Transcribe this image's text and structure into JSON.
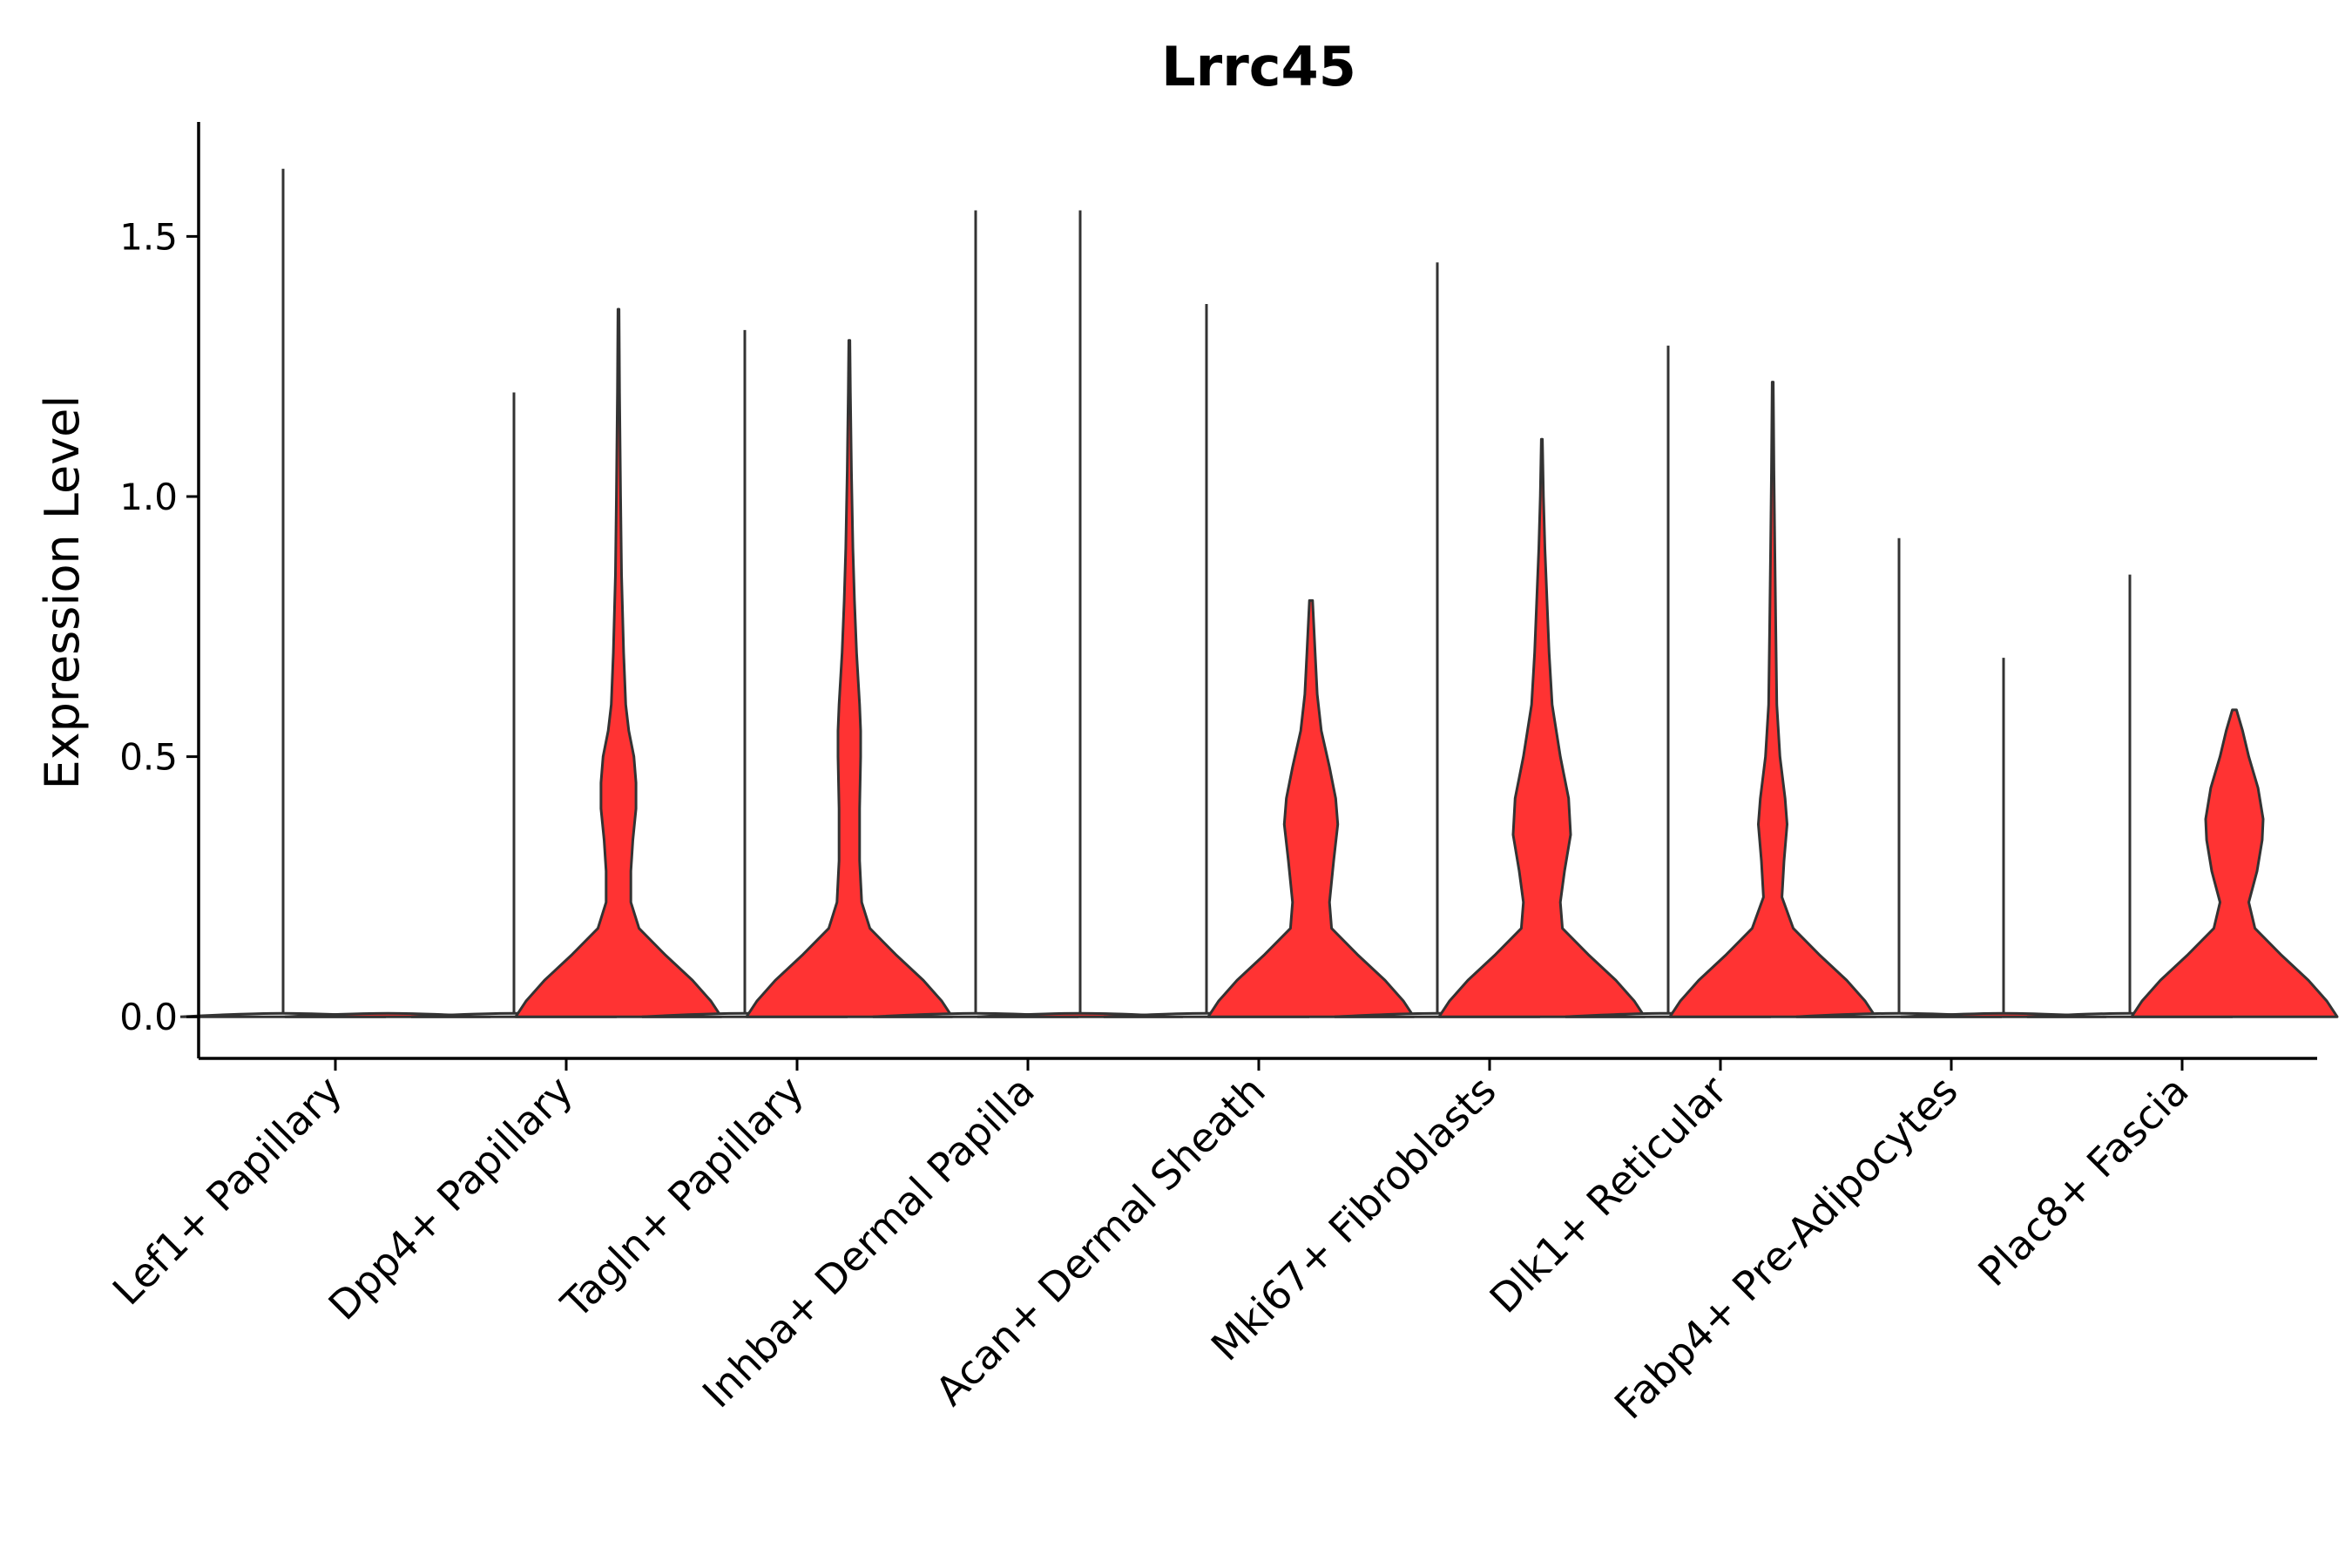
{
  "chart_data": {
    "type": "violin",
    "title": "Lrrc45",
    "xlabel": "",
    "ylabel": "Expression Level",
    "ylim": [
      -0.08,
      1.72
    ],
    "yticks": [
      "0.0",
      "0.5",
      "1.0",
      "1.5"
    ],
    "ytick_values": [
      0.0,
      0.5,
      1.0,
      1.5
    ],
    "categories": [
      "Lef1+ Papillary",
      "Dpp4+ Papillary",
      "Tagln+ Papillary",
      "Inhba+ Dermal Papilla",
      "Acan+ Dermal Sheath",
      "Mki67+ Fibroblasts",
      "Dlk1+ Reticular",
      "Fabp4+ Pre-Adipocytes",
      "Plac8+ Fascia"
    ],
    "series": [
      {
        "name": "",
        "color": "#ffffff",
        "max": [
          1.63,
          1.2,
          1.32,
          1.55,
          1.37,
          1.45,
          1.29,
          0.92,
          0.85
        ],
        "min": [
          0,
          0,
          0,
          0,
          0,
          0,
          0,
          0,
          0
        ],
        "density": [
          [],
          [],
          [],
          [],
          [],
          [],
          [],
          [],
          []
        ]
      },
      {
        "name": "",
        "color": "#ff3333",
        "max": [
          0,
          1.36,
          1.3,
          1.55,
          0.8,
          1.11,
          1.22,
          0.69,
          0.59
        ],
        "min": [
          0,
          0,
          0,
          0,
          0,
          0,
          0,
          0,
          0
        ],
        "density": [
          [],
          [
            [
              0,
              1.0
            ],
            [
              0.03,
              0.9
            ],
            [
              0.07,
              0.72
            ],
            [
              0.12,
              0.45
            ],
            [
              0.17,
              0.2
            ],
            [
              0.22,
              0.12
            ],
            [
              0.28,
              0.12
            ],
            [
              0.34,
              0.14
            ],
            [
              0.4,
              0.17
            ],
            [
              0.45,
              0.17
            ],
            [
              0.5,
              0.15
            ],
            [
              0.55,
              0.1
            ],
            [
              0.6,
              0.07
            ],
            [
              0.7,
              0.05
            ],
            [
              0.85,
              0.03
            ],
            [
              1.0,
              0.02
            ],
            [
              1.2,
              0.01
            ],
            [
              1.36,
              0.005
            ]
          ],
          [
            [
              0,
              1.0
            ],
            [
              0.03,
              0.9
            ],
            [
              0.07,
              0.72
            ],
            [
              0.12,
              0.45
            ],
            [
              0.17,
              0.2
            ],
            [
              0.22,
              0.12
            ],
            [
              0.3,
              0.1
            ],
            [
              0.4,
              0.1
            ],
            [
              0.5,
              0.11
            ],
            [
              0.55,
              0.11
            ],
            [
              0.6,
              0.1
            ],
            [
              0.7,
              0.07
            ],
            [
              0.8,
              0.05
            ],
            [
              0.9,
              0.035
            ],
            [
              1.05,
              0.02
            ],
            [
              1.2,
              0.01
            ],
            [
              1.3,
              0.005
            ]
          ],
          [],
          [
            [
              0,
              1.0
            ],
            [
              0.03,
              0.9
            ],
            [
              0.07,
              0.72
            ],
            [
              0.12,
              0.45
            ],
            [
              0.17,
              0.2
            ],
            [
              0.22,
              0.18
            ],
            [
              0.3,
              0.22
            ],
            [
              0.37,
              0.26
            ],
            [
              0.42,
              0.24
            ],
            [
              0.48,
              0.18
            ],
            [
              0.55,
              0.1
            ],
            [
              0.62,
              0.06
            ],
            [
              0.7,
              0.04
            ],
            [
              0.8,
              0.015
            ]
          ],
          [
            [
              0,
              1.0
            ],
            [
              0.03,
              0.9
            ],
            [
              0.07,
              0.72
            ],
            [
              0.12,
              0.45
            ],
            [
              0.17,
              0.2
            ],
            [
              0.22,
              0.18
            ],
            [
              0.28,
              0.22
            ],
            [
              0.35,
              0.28
            ],
            [
              0.42,
              0.26
            ],
            [
              0.5,
              0.18
            ],
            [
              0.6,
              0.1
            ],
            [
              0.7,
              0.07
            ],
            [
              0.8,
              0.05
            ],
            [
              0.9,
              0.03
            ],
            [
              1.0,
              0.015
            ],
            [
              1.11,
              0.005
            ]
          ],
          [
            [
              0,
              1.0
            ],
            [
              0.03,
              0.9
            ],
            [
              0.07,
              0.72
            ],
            [
              0.12,
              0.45
            ],
            [
              0.17,
              0.2
            ],
            [
              0.23,
              0.09
            ],
            [
              0.3,
              0.11
            ],
            [
              0.37,
              0.14
            ],
            [
              0.42,
              0.12
            ],
            [
              0.5,
              0.07
            ],
            [
              0.6,
              0.04
            ],
            [
              0.75,
              0.03
            ],
            [
              0.9,
              0.02
            ],
            [
              1.05,
              0.012
            ],
            [
              1.22,
              0.005
            ]
          ],
          [],
          [
            [
              0,
              1.0
            ],
            [
              0.03,
              0.9
            ],
            [
              0.07,
              0.72
            ],
            [
              0.12,
              0.45
            ],
            [
              0.17,
              0.2
            ],
            [
              0.22,
              0.14
            ],
            [
              0.28,
              0.22
            ],
            [
              0.34,
              0.27
            ],
            [
              0.38,
              0.28
            ],
            [
              0.44,
              0.23
            ],
            [
              0.5,
              0.14
            ],
            [
              0.55,
              0.08
            ],
            [
              0.59,
              0.02
            ]
          ]
        ]
      }
    ],
    "grid": false,
    "legend": "none"
  }
}
